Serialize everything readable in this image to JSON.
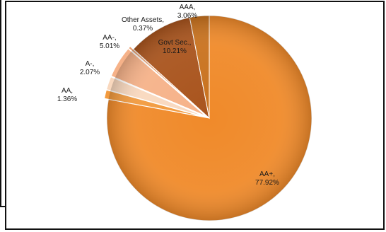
{
  "chart_data": {
    "type": "pie",
    "title": "",
    "slices": [
      {
        "name": "AA+",
        "value": 77.92,
        "color": "#F08A2A",
        "label": [
          "AA+,",
          "77.92%"
        ]
      },
      {
        "name": "AA",
        "value": 1.36,
        "color": "#F29A3E",
        "label": [
          "AA,",
          "1.36%"
        ]
      },
      {
        "name": "A-",
        "value": 2.07,
        "color": "#F9D8BE",
        "label": [
          "A-,",
          "2.07%"
        ]
      },
      {
        "name": "AA-",
        "value": 5.01,
        "color": "#F6B289",
        "label": [
          "AA-,",
          "5.01%"
        ]
      },
      {
        "name": "Other Assets",
        "value": 0.37,
        "color": "#E8A070",
        "label": [
          "Other Assets,",
          "0.37%"
        ]
      },
      {
        "name": "Govt Sec.",
        "value": 10.21,
        "color": "#A9541D",
        "label": [
          "Govt Sec.,",
          "10.21%"
        ]
      },
      {
        "name": "AAA",
        "value": 3.06,
        "color": "#C9721E",
        "label": [
          "AAA,",
          "3.06%"
        ]
      }
    ]
  }
}
